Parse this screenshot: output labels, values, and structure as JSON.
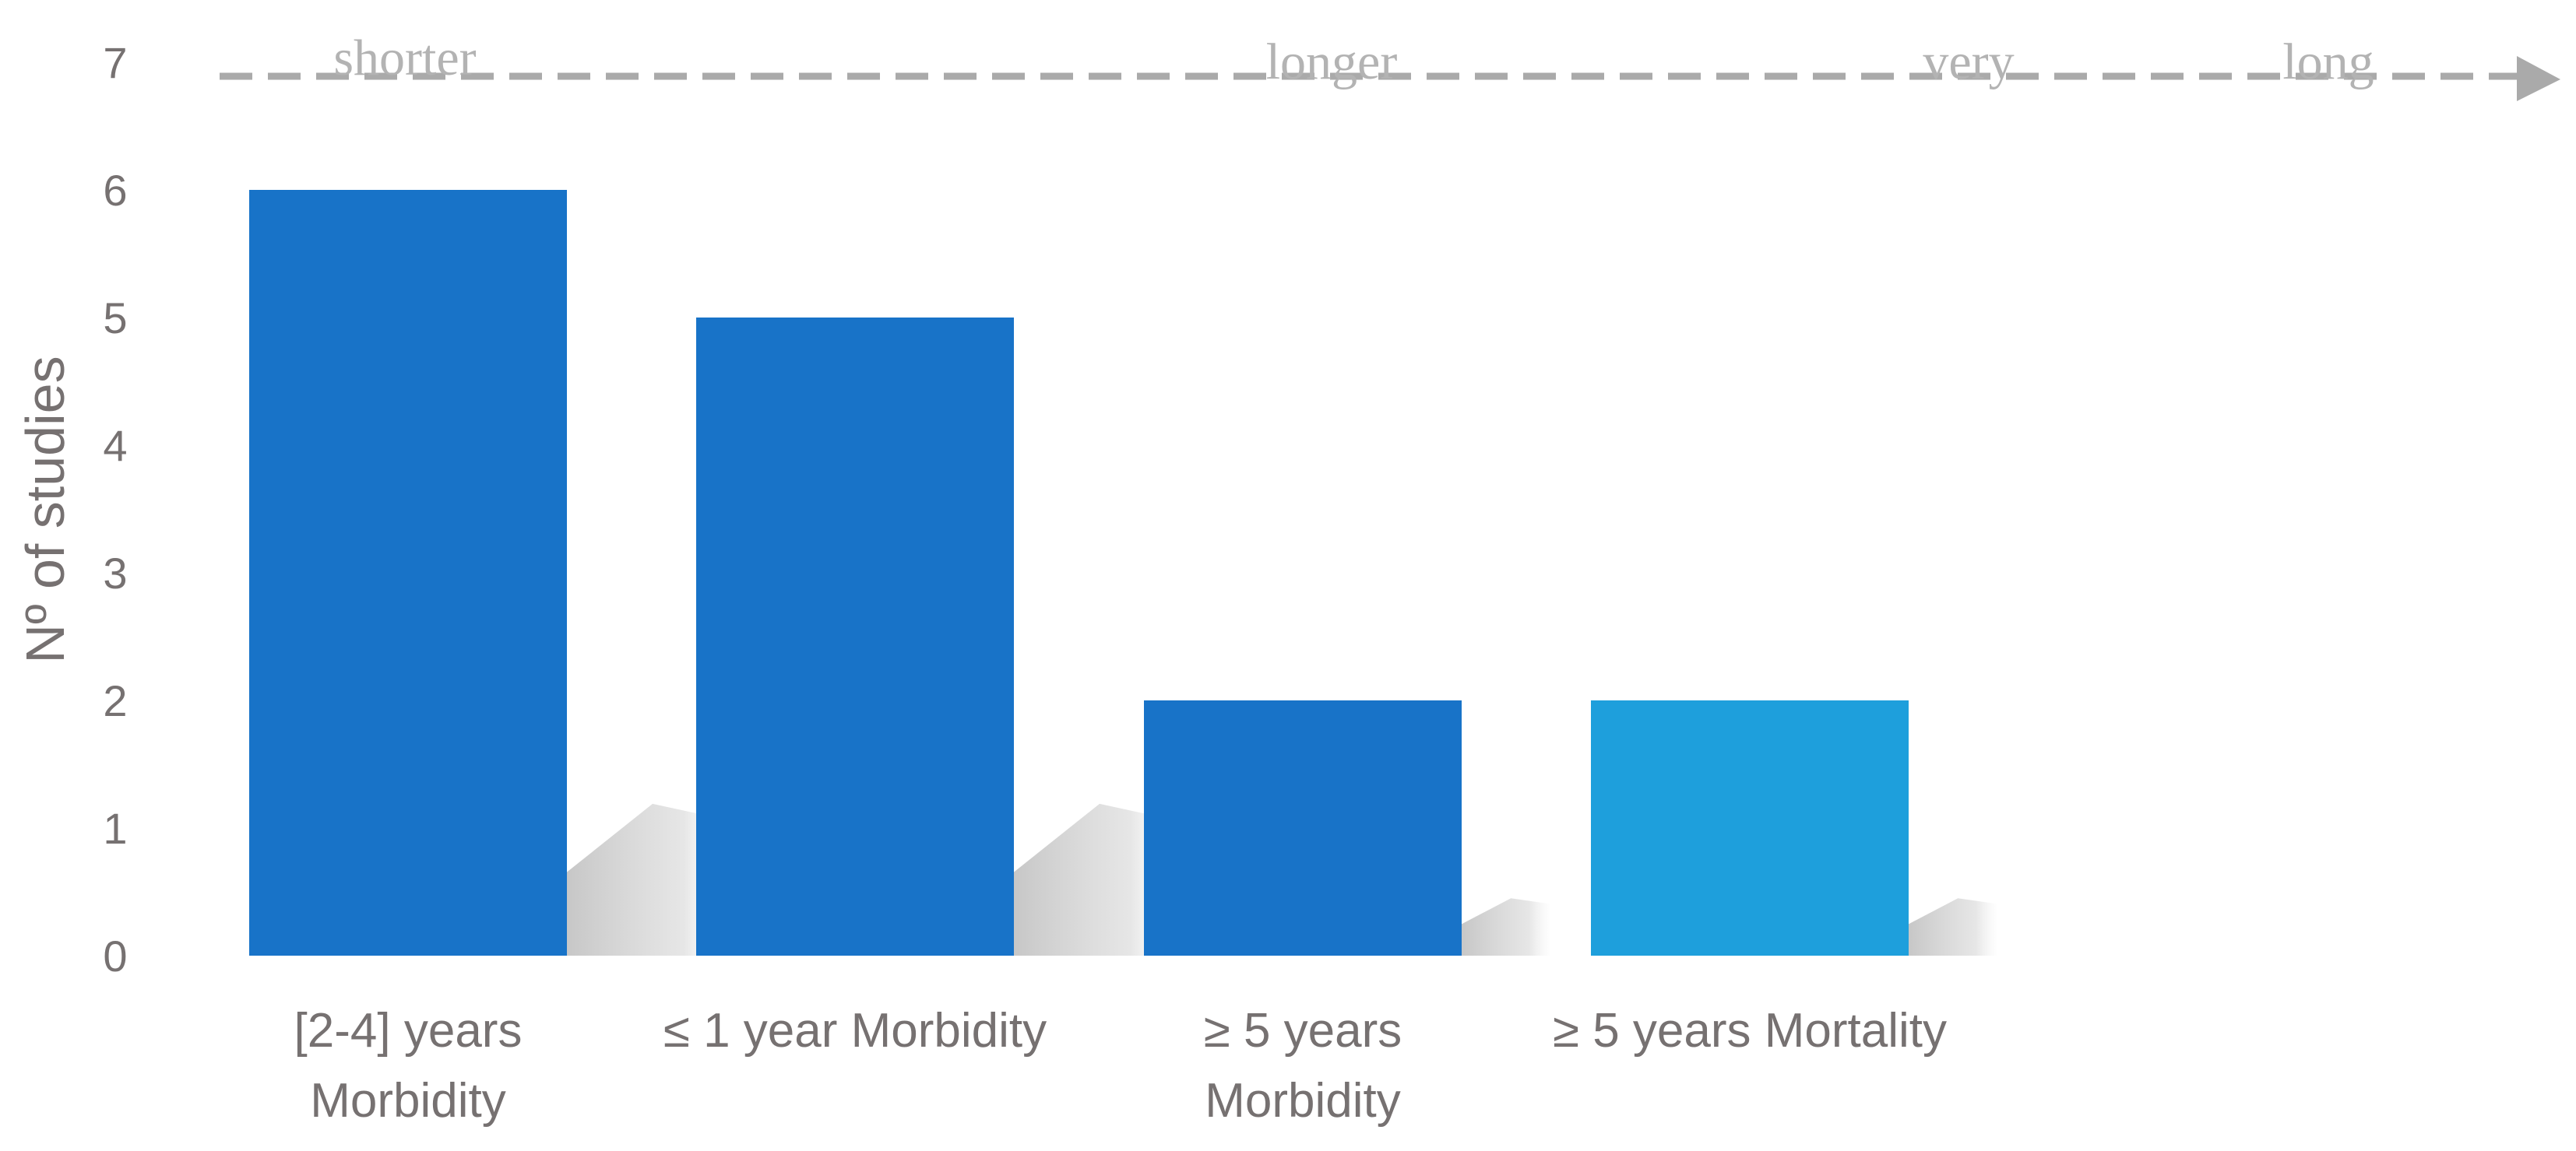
{
  "chart_data": {
    "type": "bar",
    "categories": [
      [
        "[2-4] years",
        "Morbidity"
      ],
      [
        "≤ 1 year Morbidity"
      ],
      [
        "≥ 5 years",
        "Morbidity"
      ],
      [
        "≥ 5 years Mortality"
      ]
    ],
    "values": [
      6,
      5,
      2,
      2
    ],
    "bar_colors": [
      "#1873c8",
      "#1873c8",
      "#1873c8",
      "#1e9fdc"
    ],
    "title": "",
    "xlabel": "",
    "ylabel": "Nº of studies",
    "ylim": [
      0,
      7
    ],
    "yticks": [
      "0",
      "1",
      "2",
      "3",
      "4",
      "5",
      "6",
      "7"
    ],
    "grid": false,
    "legend": "none",
    "arrow_labels": [
      "shorter",
      "longer",
      "very",
      "long"
    ],
    "colors": {
      "text": "#767171",
      "arrow": "#aaaaaa",
      "arrow_text": "#b3b3b3",
      "shadow": "#c8c8c8"
    }
  }
}
